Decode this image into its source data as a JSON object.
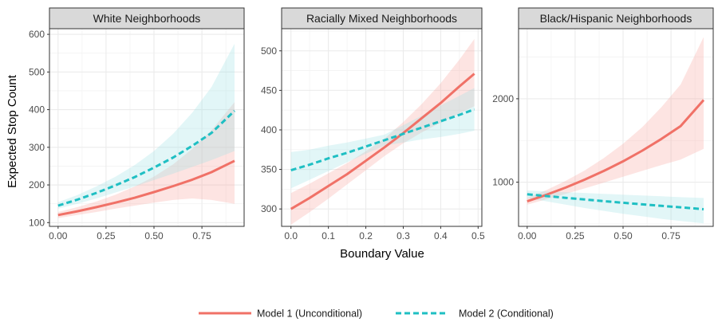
{
  "colors": {
    "model1": "#f07167",
    "model2": "#1fbfc3",
    "model1_band": "#f8a6a0",
    "model2_band": "#9ee0e3",
    "grid": "#ebebeb",
    "strip_bg": "#d9d9d9",
    "panel_border": "#333333"
  },
  "chart_data": {
    "type": "line",
    "xlabel": "Boundary Value",
    "ylabel": "Expected Stop Count",
    "legend": {
      "position": "bottom",
      "entries": [
        {
          "label": "Model 1 (Unconditional)",
          "series": "model1",
          "linestyle": "solid"
        },
        {
          "label": "Model 2 (Conditional)",
          "series": "model2",
          "linestyle": "dashed"
        }
      ]
    },
    "grid": true,
    "panels": [
      {
        "title": "White Neighborhoods",
        "xlim": [
          -0.045,
          0.97
        ],
        "ylim": [
          90,
          615
        ],
        "xticks": [
          0,
          0.25,
          0.5,
          0.75
        ],
        "xtick_labels": [
          "0.00",
          "0.25",
          "0.50",
          "0.75"
        ],
        "yticks": [
          100,
          200,
          300,
          400,
          500,
          600
        ],
        "ytick_labels": [
          "100",
          "200",
          "300",
          "400",
          "500",
          "600"
        ],
        "series": [
          {
            "key": "model1",
            "x": [
              0,
              0.1,
              0.2,
              0.3,
              0.4,
              0.5,
              0.6,
              0.7,
              0.8,
              0.92
            ],
            "y": [
              120,
              130,
              141,
              153,
              166,
              181,
              197,
              214,
              234,
              264
            ],
            "lower": [
              112,
              120,
              128,
              137,
              145,
              153,
              160,
              164,
              160,
              150
            ],
            "upper": [
              128,
              141,
              156,
              174,
              196,
              222,
              255,
              296,
              345,
              420
            ]
          },
          {
            "key": "model2",
            "x": [
              0,
              0.1,
              0.2,
              0.3,
              0.4,
              0.5,
              0.6,
              0.7,
              0.8,
              0.92
            ],
            "y": [
              145,
              161,
              179,
              199,
              221,
              246,
              273,
              304,
              338,
              397
            ],
            "lower": [
              137,
              150,
              164,
              180,
              196,
              213,
              230,
              248,
              266,
              290
            ],
            "upper": [
              154,
              173,
              196,
              222,
              253,
              290,
              336,
              392,
              460,
              575
            ]
          }
        ]
      },
      {
        "title": "Racially Mixed Neighborhoods",
        "xlim": [
          -0.025,
          0.51
        ],
        "ylim": [
          278,
          528
        ],
        "xticks": [
          0,
          0.1,
          0.2,
          0.3,
          0.4,
          0.5
        ],
        "xtick_labels": [
          "0.0",
          "0.1",
          "0.2",
          "0.3",
          "0.4",
          "0.5"
        ],
        "yticks": [
          300,
          350,
          400,
          450,
          500
        ],
        "ytick_labels": [
          "300",
          "350",
          "400",
          "450",
          "500"
        ],
        "series": [
          {
            "key": "model1",
            "x": [
              0,
              0.05,
              0.1,
              0.15,
              0.2,
              0.25,
              0.3,
              0.35,
              0.4,
              0.45,
              0.49
            ],
            "y": [
              300,
              314,
              329,
              344,
              361,
              378,
              396,
              415,
              434,
              455,
              471
            ],
            "lower": [
              280,
              296,
              313,
              331,
              349,
              367,
              383,
              397,
              409,
              421,
              430
            ],
            "upper": [
              320,
              332,
              345,
              358,
              373,
              389,
              410,
              433,
              459,
              489,
              515
            ]
          },
          {
            "key": "model2",
            "x": [
              0,
              0.05,
              0.1,
              0.15,
              0.2,
              0.25,
              0.3,
              0.35,
              0.4,
              0.45,
              0.49
            ],
            "y": [
              349,
              356,
              364,
              371,
              379,
              387,
              395,
              403,
              411,
              419,
              426
            ],
            "lower": [
              326,
              337,
              348,
              359,
              370,
              380,
              384,
              388,
              391,
              395,
              399
            ],
            "upper": [
              372,
              375,
              380,
              384,
              389,
              394,
              406,
              418,
              431,
              443,
              453
            ]
          }
        ]
      },
      {
        "title": "Black/Hispanic Neighborhoods",
        "xlim": [
          -0.045,
          0.97
        ],
        "ylim": [
          470,
          2840
        ],
        "xticks": [
          0,
          0.25,
          0.5,
          0.75
        ],
        "xtick_labels": [
          "0.00",
          "0.25",
          "0.50",
          "0.75"
        ],
        "yticks": [
          1000,
          2000
        ],
        "ytick_labels": [
          "1000",
          "2000"
        ],
        "series": [
          {
            "key": "model1",
            "x": [
              0,
              0.1,
              0.2,
              0.3,
              0.4,
              0.5,
              0.6,
              0.7,
              0.8,
              0.92
            ],
            "y": [
              770,
              848,
              934,
              1030,
              1135,
              1250,
              1378,
              1518,
              1672,
              1985
            ],
            "lower": [
              730,
              795,
              860,
              925,
              995,
              1065,
              1135,
              1205,
              1270,
              1400
            ],
            "upper": [
              810,
              905,
              1015,
              1140,
              1290,
              1460,
              1660,
              1900,
              2170,
              2740
            ]
          },
          {
            "key": "model2",
            "x": [
              0,
              0.1,
              0.2,
              0.3,
              0.4,
              0.5,
              0.6,
              0.7,
              0.8,
              0.92
            ],
            "y": [
              855,
              833,
              812,
              792,
              772,
              753,
              734,
              716,
              698,
              675
            ],
            "lower": [
              810,
              770,
              730,
              690,
              655,
              620,
              590,
              560,
              535,
              505
            ],
            "upper": [
              900,
              890,
              880,
              870,
              860,
              850,
              840,
              830,
              820,
              810
            ]
          }
        ]
      }
    ]
  }
}
